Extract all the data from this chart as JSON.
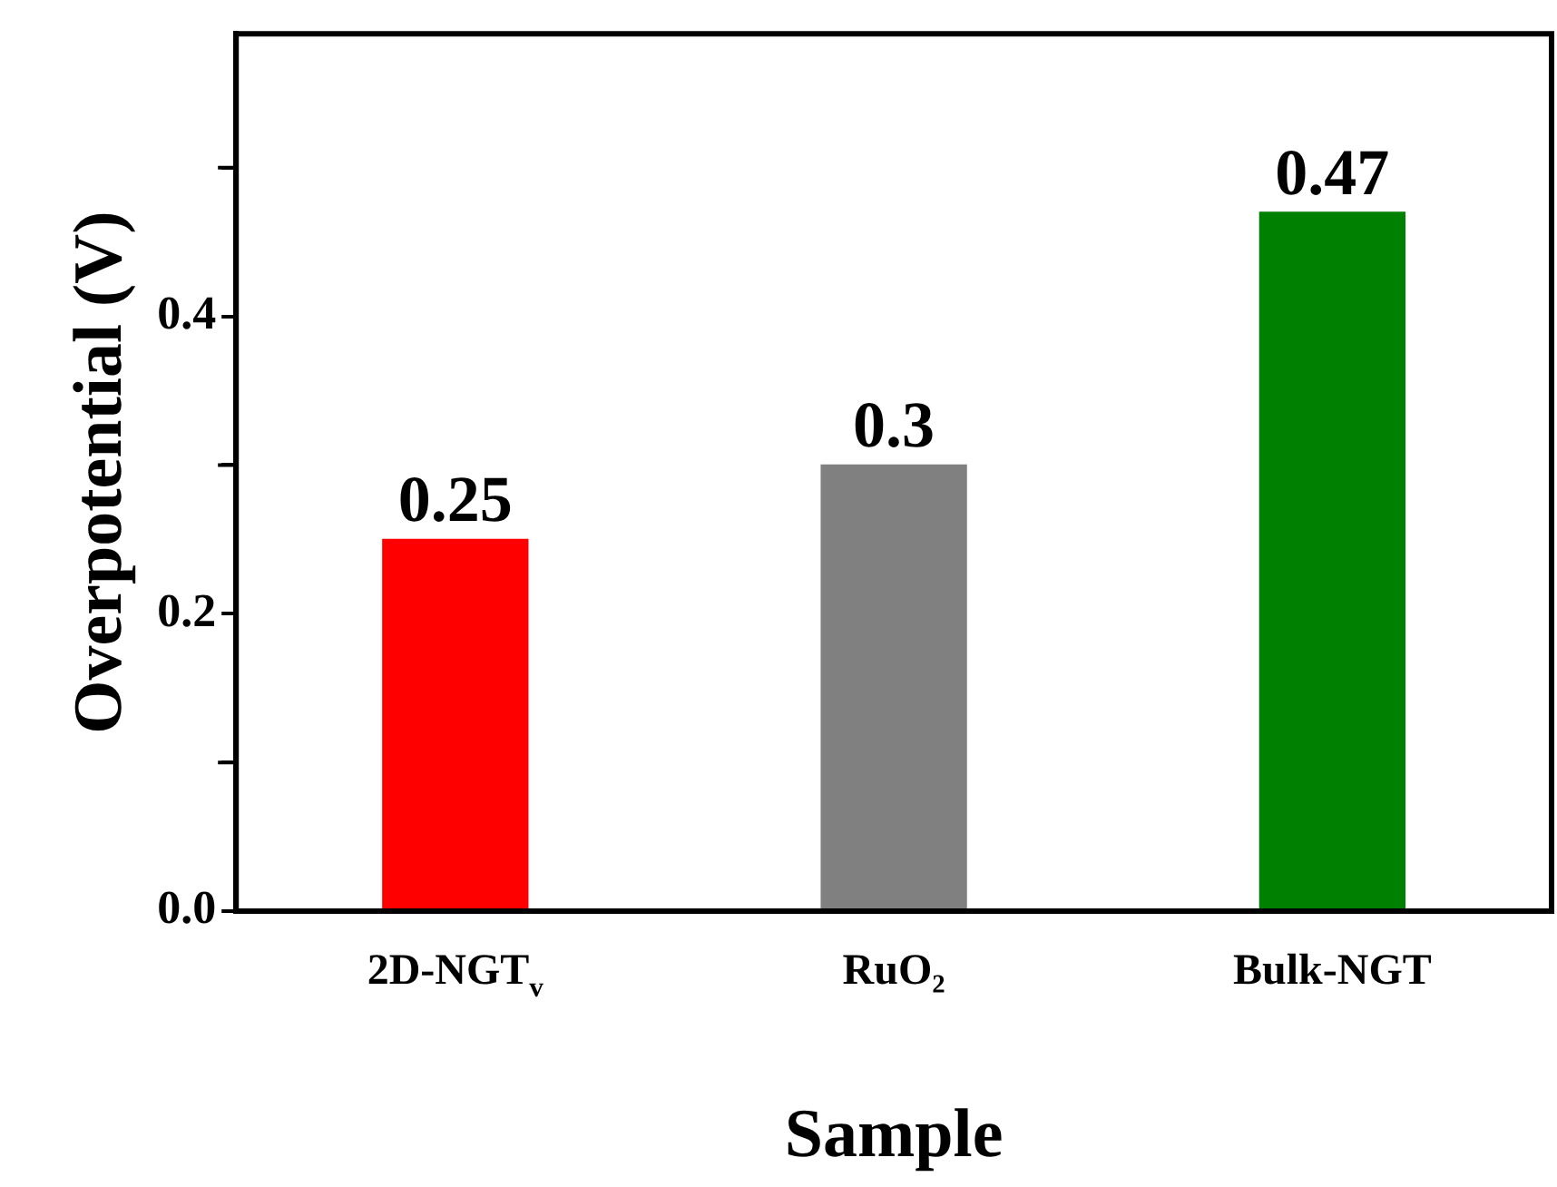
{
  "chart_data": {
    "type": "bar",
    "xlabel": "Sample",
    "ylabel": "Overpotential (V)",
    "categories": [
      "2D-NGT$_{v}$",
      "RuO₂",
      "Bulk-NGT"
    ],
    "values": [
      0.25,
      0.3,
      0.47
    ],
    "colors": [
      "#ff0000",
      "#808080",
      "#008000"
    ],
    "ylim": [
      0,
      0.59
    ],
    "yticks": [
      {
        "value": 0,
        "label": "0.0"
      },
      {
        "value": 0.1,
        "label": null
      },
      {
        "value": 0.2,
        "label": "0.2"
      },
      {
        "value": 0.3,
        "label": null
      },
      {
        "value": 0.4,
        "label": "0.4"
      },
      {
        "value": 0.5,
        "label": null
      }
    ],
    "data_labels": true,
    "grid": false,
    "legend": false
  }
}
